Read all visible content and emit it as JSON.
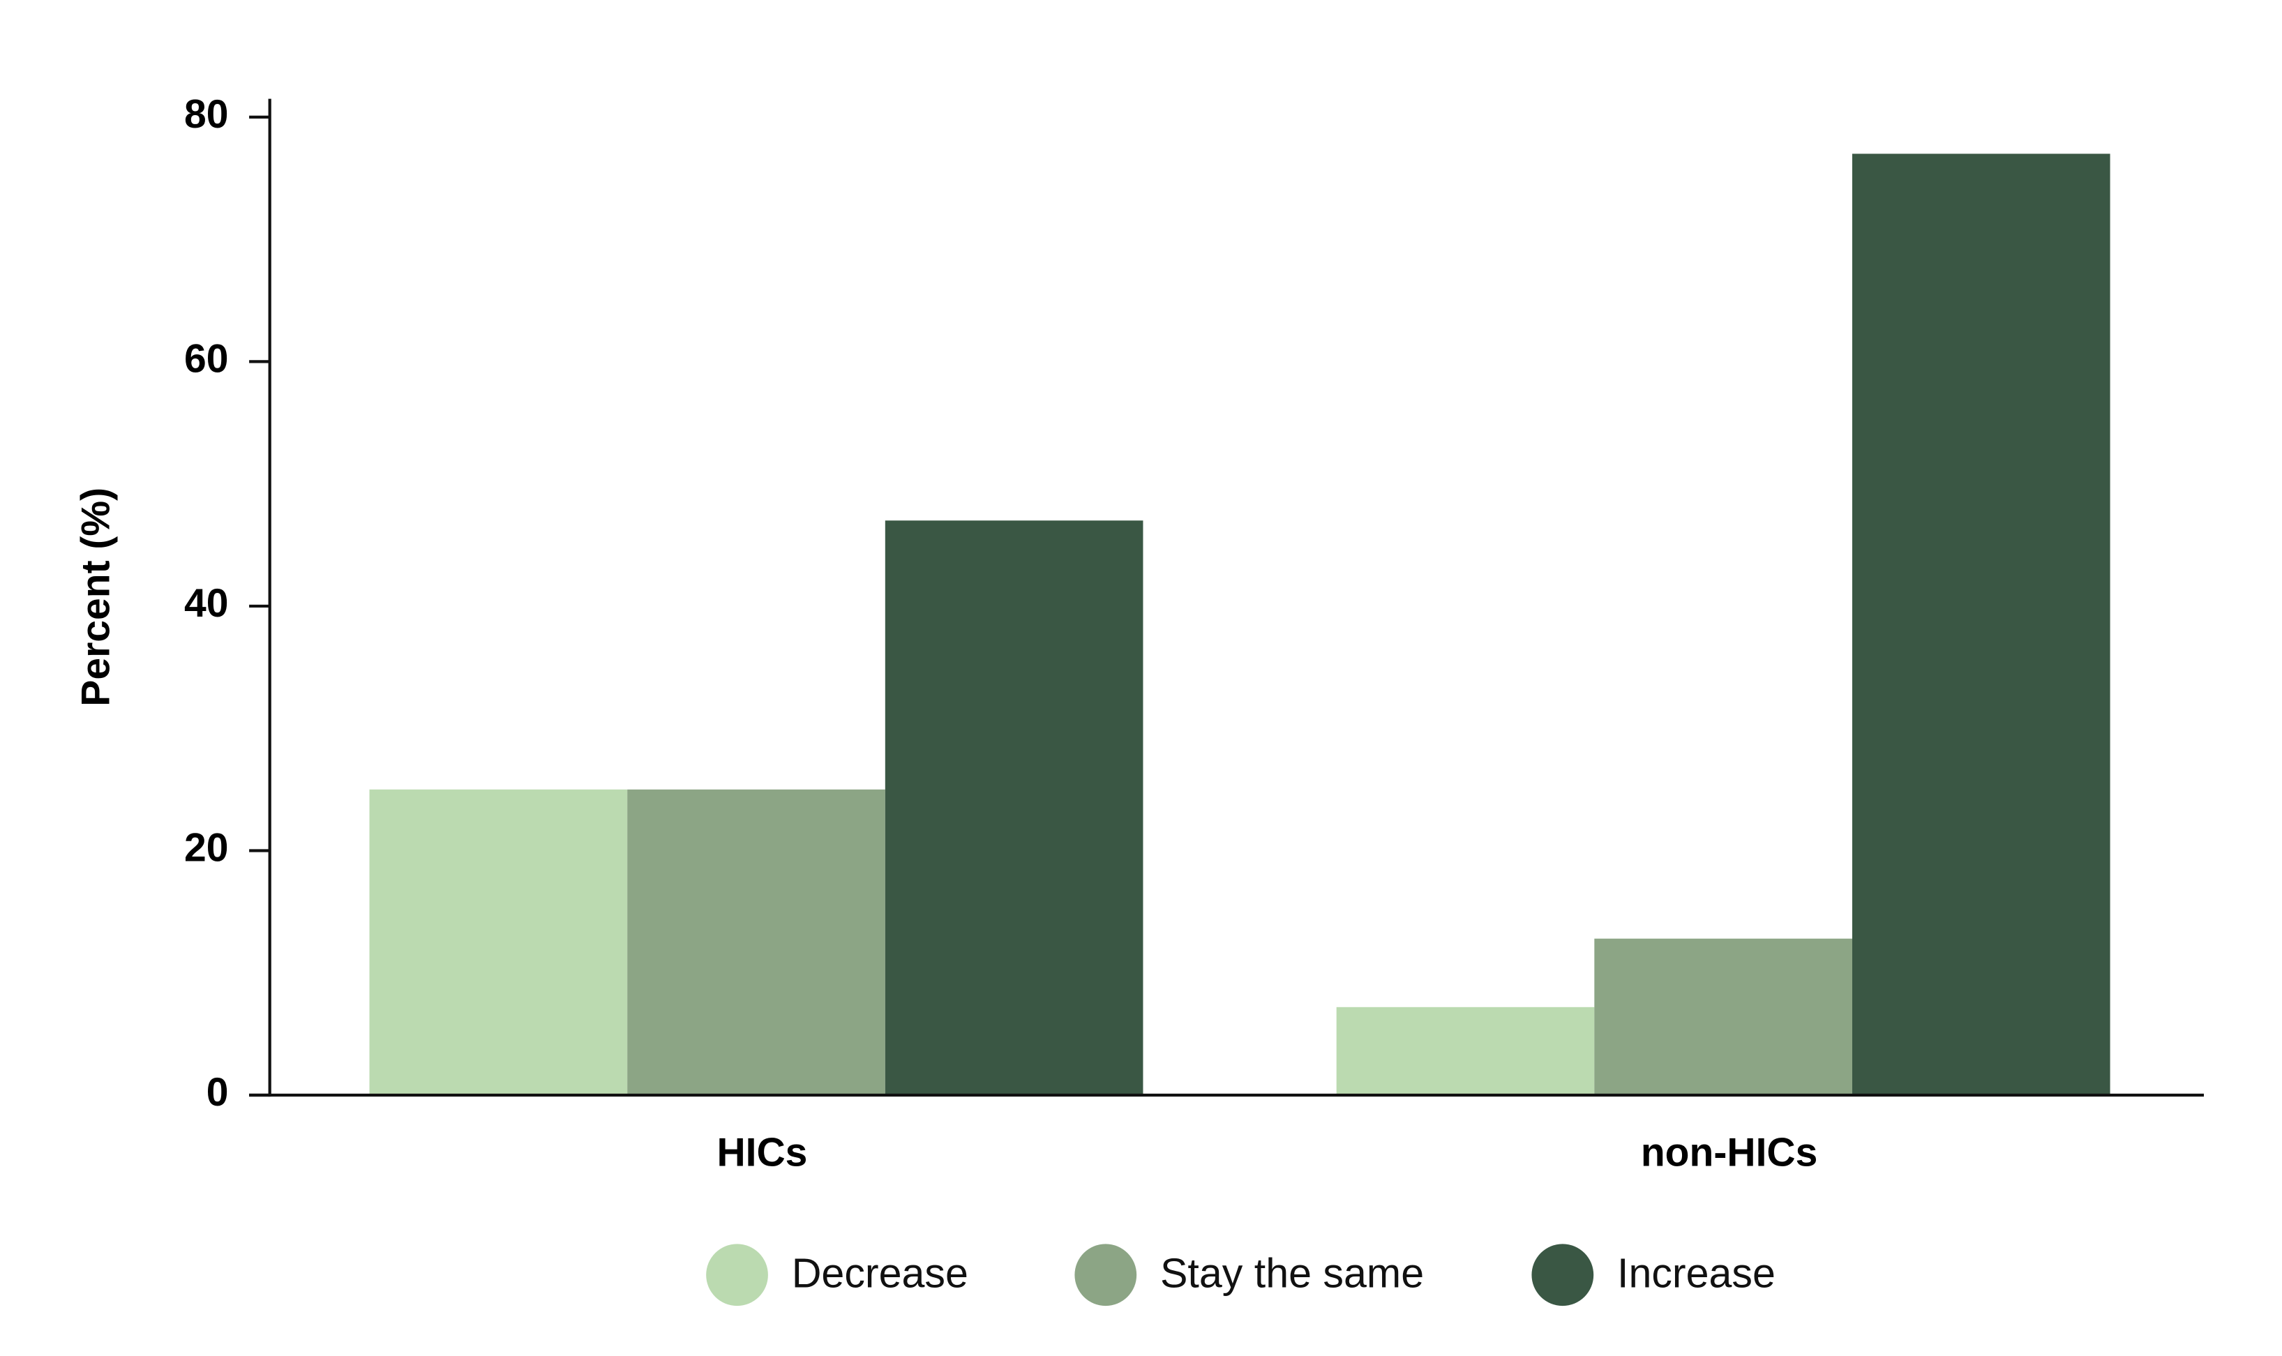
{
  "chart_data": {
    "type": "bar",
    "y_label": "Percent (%)",
    "categories": [
      "HICs",
      "non-HICs"
    ],
    "series": [
      {
        "name": "Decrease",
        "color": "#bbdab0",
        "values": [
          25,
          7.2
        ]
      },
      {
        "name": "Stay the same",
        "color": "#8ca585",
        "values": [
          25,
          12.8
        ]
      },
      {
        "name": "Increase",
        "color": "#3a5744",
        "values": [
          47,
          77
        ]
      }
    ],
    "ylim": [
      0,
      81.5
    ],
    "yticks": [
      0,
      20,
      40,
      60,
      80
    ],
    "legend": "bottom"
  }
}
